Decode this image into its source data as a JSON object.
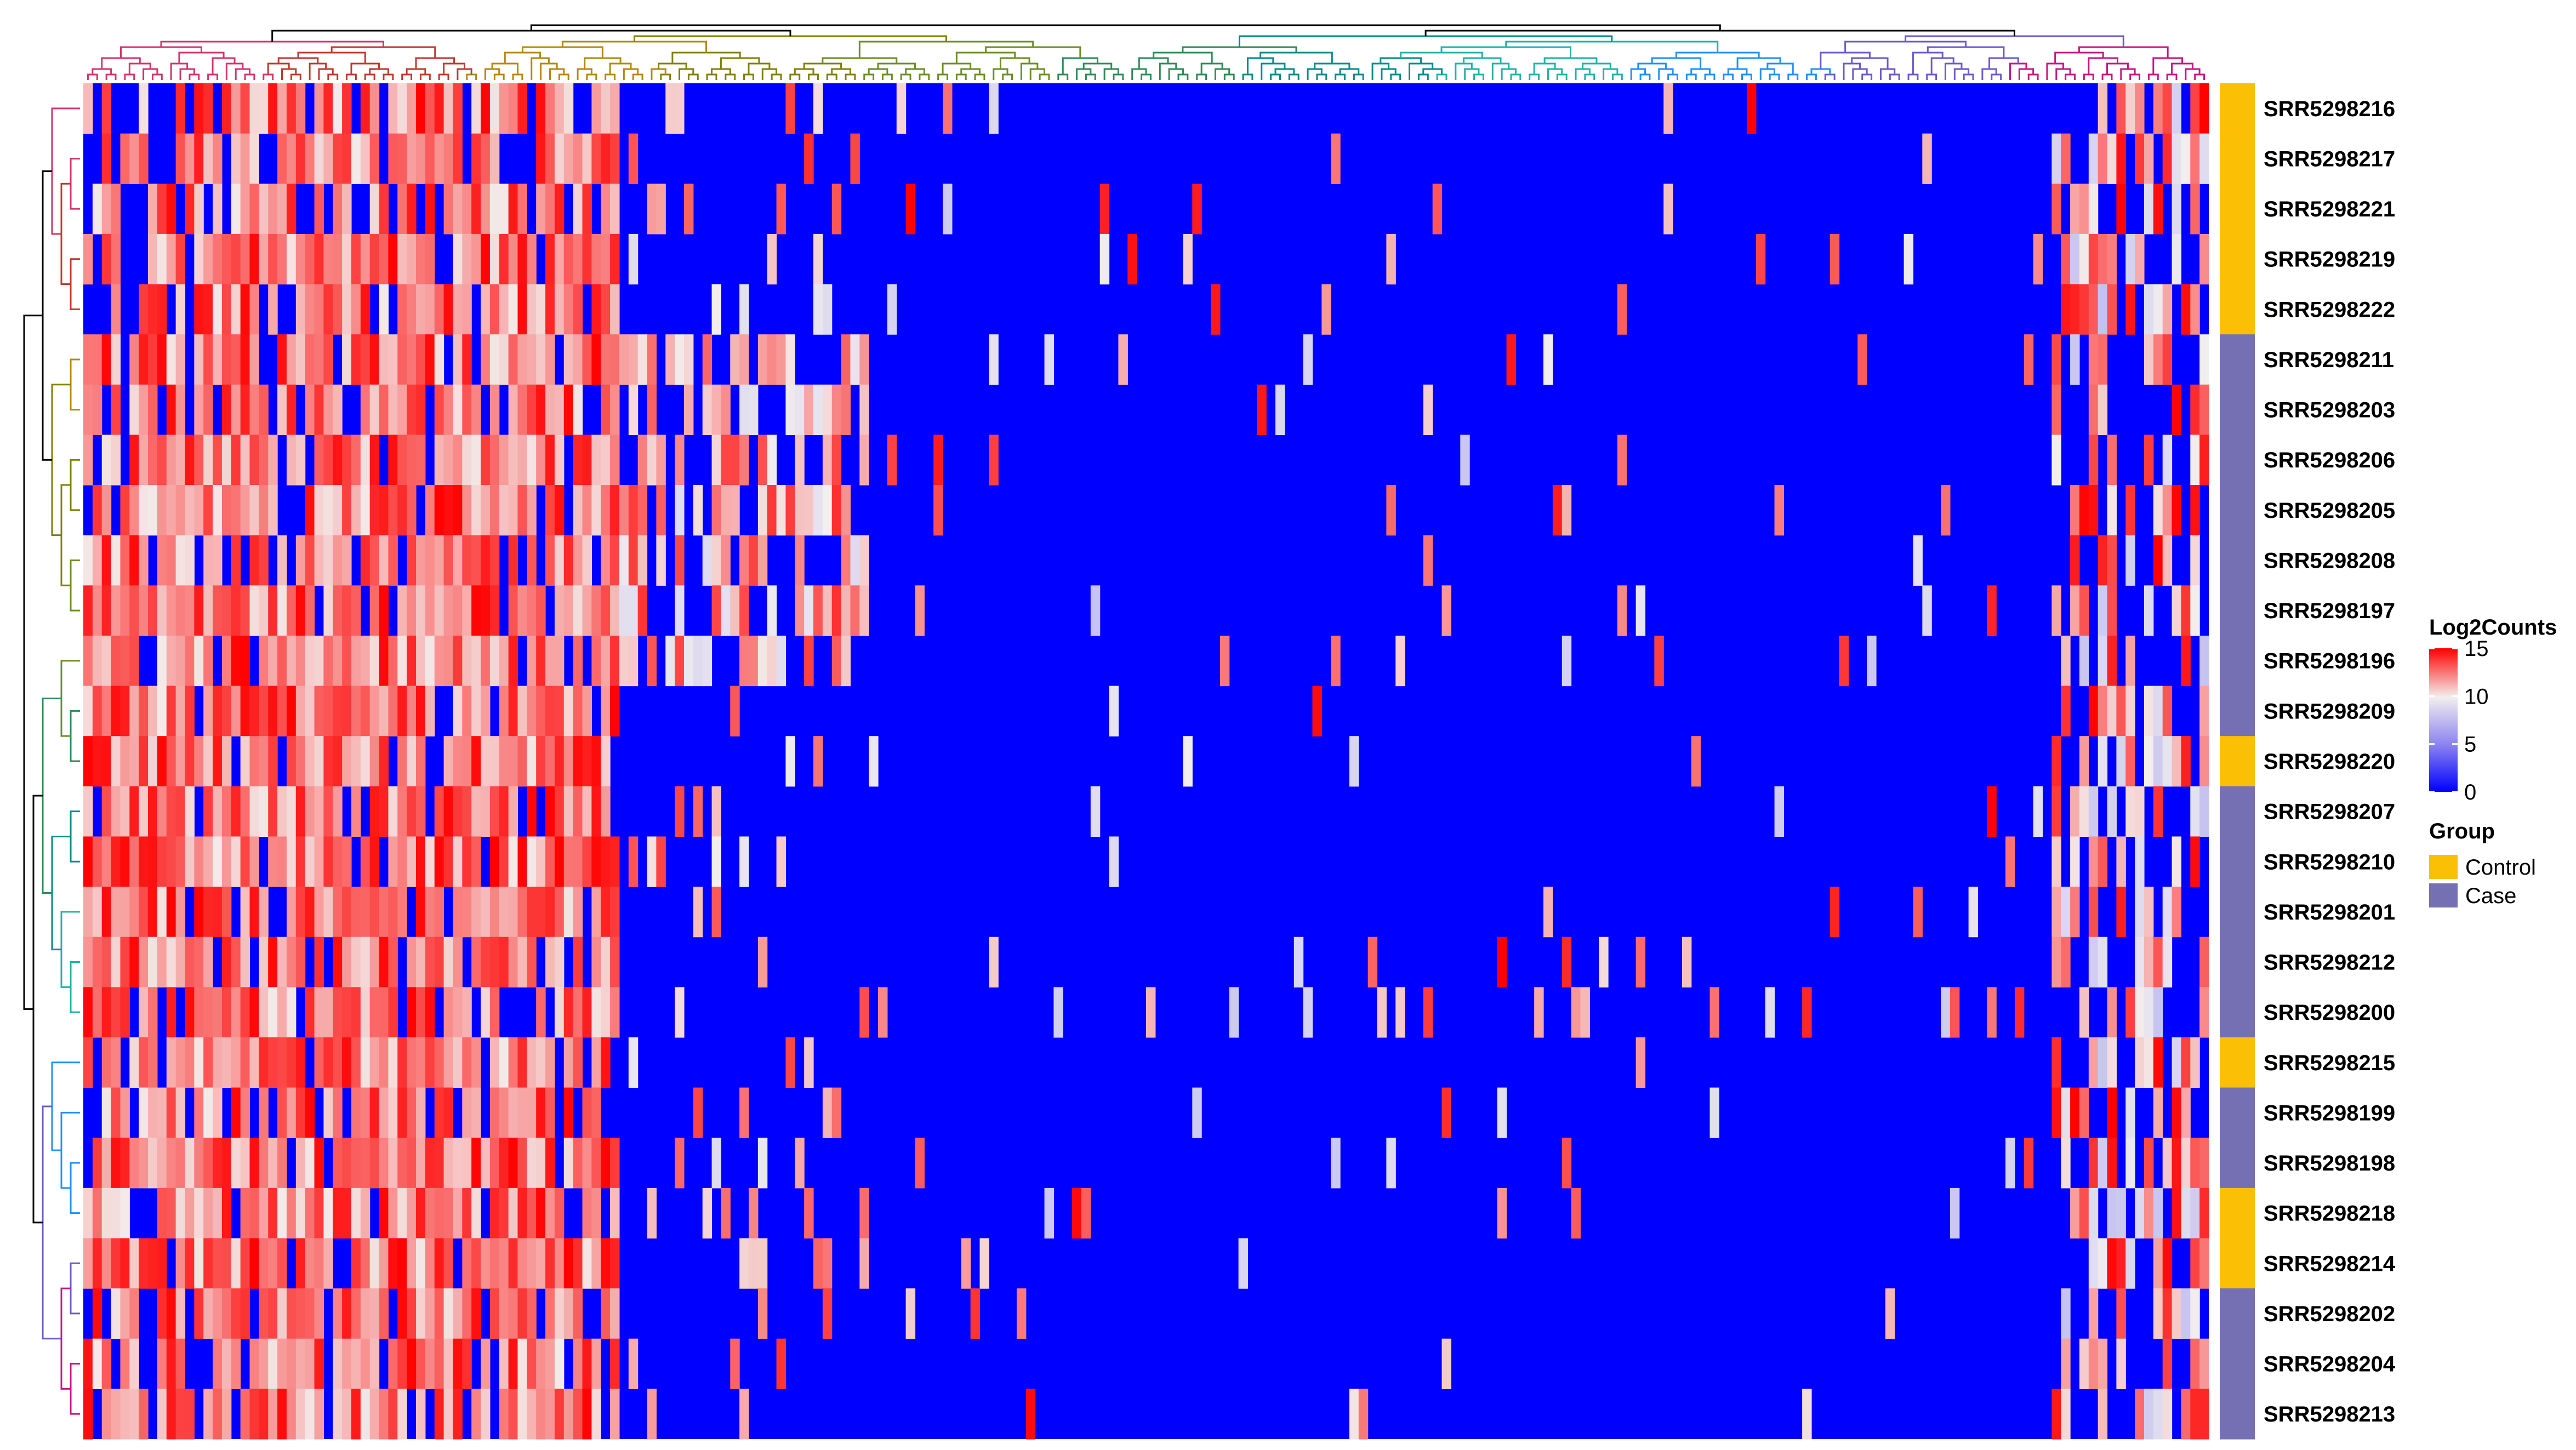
{
  "chart_data": {
    "type": "heatmap",
    "title": "",
    "xlabel": "",
    "ylabel": "",
    "rows": [
      "SRR5298216",
      "SRR5298217",
      "SRR5298221",
      "SRR5298219",
      "SRR5298222",
      "SRR5298211",
      "SRR5298203",
      "SRR5298206",
      "SRR5298205",
      "SRR5298208",
      "SRR5298197",
      "SRR5298196",
      "SRR5298209",
      "SRR5298220",
      "SRR5298207",
      "SRR5298210",
      "SRR5298201",
      "SRR5298212",
      "SRR5298200",
      "SRR5298215",
      "SRR5298199",
      "SRR5298198",
      "SRR5298218",
      "SRR5298214",
      "SRR5298202",
      "SRR5298204",
      "SRR5298213"
    ],
    "row_groups": [
      "Control",
      "Control",
      "Control",
      "Control",
      "Control",
      "Case",
      "Case",
      "Case",
      "Case",
      "Case",
      "Case",
      "Case",
      "Case",
      "Control",
      "Case",
      "Case",
      "Case",
      "Case",
      "Case",
      "Control",
      "Case",
      "Case",
      "Control",
      "Control",
      "Case",
      "Case",
      "Case"
    ],
    "column_labels_shown": false,
    "row_dendrogram": true,
    "column_dendrogram": true,
    "color_legend": {
      "title": "Log2Counts",
      "ticks": [
        15,
        10,
        5,
        0
      ],
      "range": [
        0,
        15
      ],
      "low_color": "#0000ff",
      "mid_color": "#f3efee",
      "high_color": "#ff0000"
    },
    "group_legend": {
      "title": "Group",
      "entries": [
        {
          "label": "Control",
          "color": "#fbbf05"
        },
        {
          "label": "Case",
          "color": "#7570b3"
        }
      ]
    },
    "pattern_note_visible": false,
    "block_structure": [
      {
        "col_range": [
          0.0,
          0.25
        ],
        "level": "high",
        "value": 13
      },
      {
        "col_range": [
          0.25,
          0.92
        ],
        "level": "low",
        "value": 0
      },
      {
        "col_range": [
          0.92,
          1.0
        ],
        "level": "mixed",
        "value": 8
      }
    ]
  },
  "colors": {
    "background": "#ffffff",
    "heat_low": "#0000ff",
    "heat_mid": "#f3efee",
    "heat_high": "#ff0000",
    "control": "#fbbf05",
    "case": "#7570b3"
  }
}
